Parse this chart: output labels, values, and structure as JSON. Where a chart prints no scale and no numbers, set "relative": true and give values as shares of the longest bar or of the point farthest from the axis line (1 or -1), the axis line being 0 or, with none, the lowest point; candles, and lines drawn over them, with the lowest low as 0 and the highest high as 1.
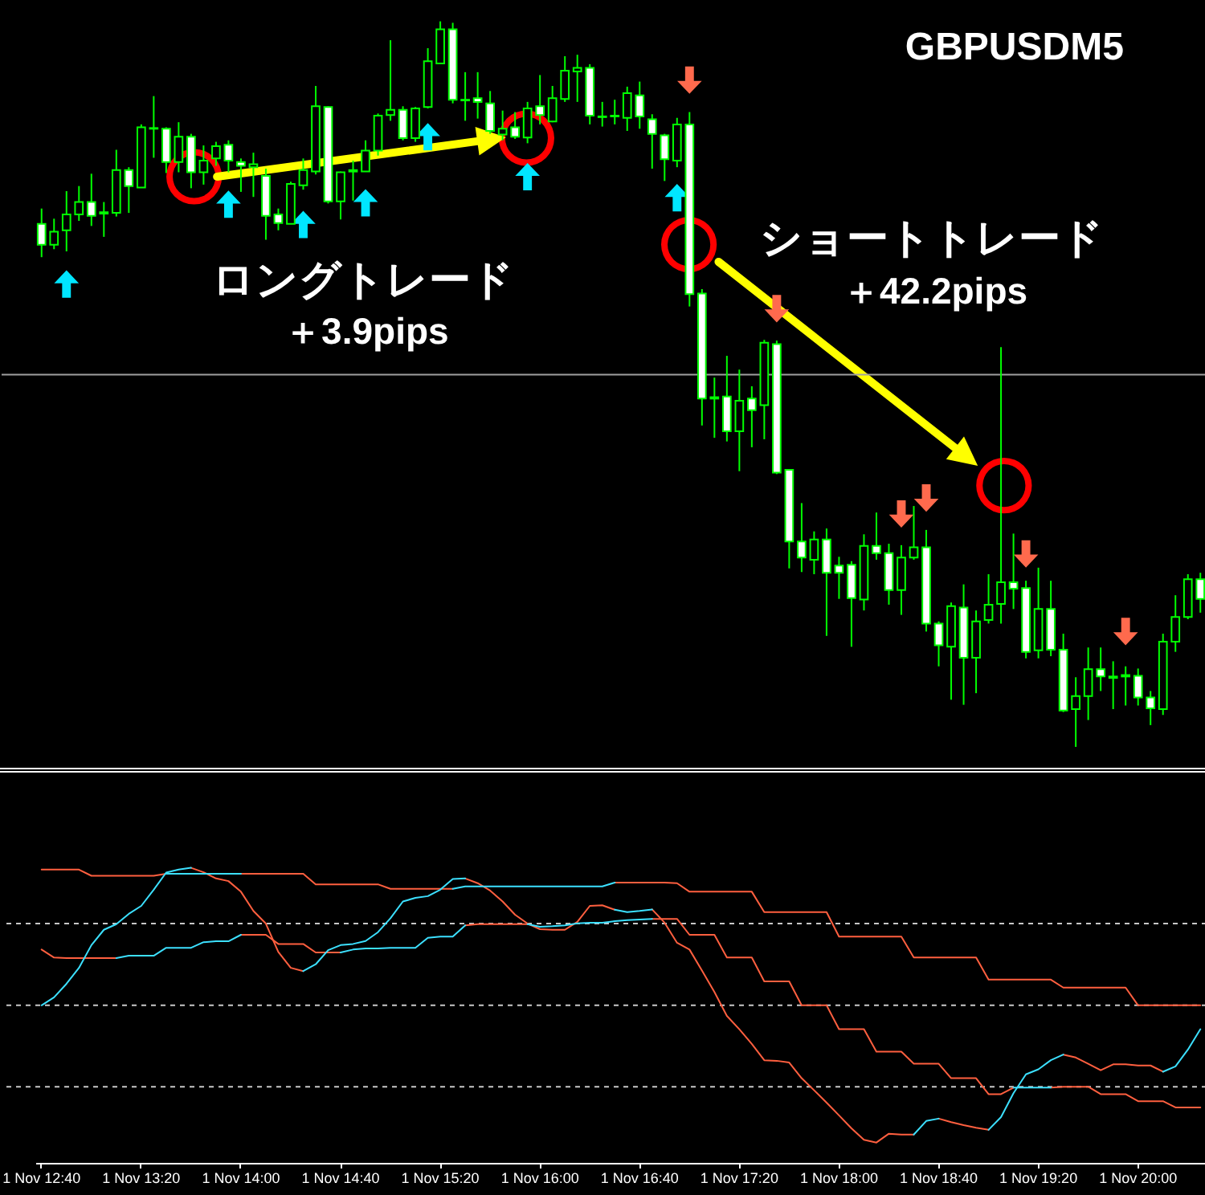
{
  "chart_data": [
    {
      "type": "candlestick",
      "relative": true,
      "title": "GBPUSDM5",
      "annotations": [
        "ロングトレード",
        "＋3.9pips",
        "ショートトレード",
        "＋42.2pips"
      ],
      "categories": [
        null,
        null,
        null,
        null,
        null,
        null,
        null,
        null,
        null,
        null,
        null,
        null,
        null,
        null,
        null,
        null,
        null,
        null,
        null,
        null,
        null,
        null,
        null,
        null,
        null,
        null,
        null,
        null,
        null,
        null,
        null,
        null,
        null,
        null,
        null,
        null,
        null,
        null,
        null,
        null,
        null,
        null,
        null,
        null,
        null,
        null,
        null,
        null,
        null,
        null,
        null,
        null,
        null,
        null,
        null,
        null,
        null,
        null,
        null,
        null,
        null,
        null,
        null,
        null,
        null,
        null,
        null,
        null,
        null,
        null,
        null,
        null,
        null,
        null,
        null,
        null,
        null,
        null,
        null,
        null,
        null,
        null,
        null,
        null,
        null,
        null,
        null,
        null,
        null,
        null,
        null,
        null,
        null,
        null
      ],
      "tick_labels": false,
      "color": "#00ff00",
      "colors": [
        "#ffffff",
        "#000000",
        "#000000",
        "#000000",
        "#ffffff",
        "#000000",
        "#000000",
        "#ffffff",
        "#000000",
        "#ffffff",
        "#ffffff",
        "#000000",
        "#ffffff",
        "#000000",
        "#000000",
        "#ffffff",
        "#ffffff",
        "#000000",
        "#ffffff",
        "#ffffff",
        "#000000",
        "#000000",
        "#000000",
        "#ffffff",
        "#000000",
        "#000000",
        "#000000",
        "#000000",
        "#000000",
        "#ffffff",
        "#000000",
        "#000000",
        "#000000",
        "#ffffff",
        "#ffffff",
        "#ffffff",
        "#ffffff",
        "#000000",
        "#ffffff",
        "#000000",
        "#ffffff",
        "#000000",
        "#000000",
        "#000000",
        "#ffffff",
        "#ffffff",
        "#000000",
        "#000000",
        "#ffffff",
        "#ffffff",
        "#ffffff",
        "#000000",
        "#ffffff",
        "#ffffff",
        "#ffffff",
        "#ffffff",
        "#000000",
        "#ffffff",
        "#000000",
        "#ffffff",
        "#ffffff",
        "#ffffff",
        "#000000",
        "#ffffff",
        "#ffffff",
        "#ffffff",
        "#000000",
        "#ffffff",
        "#ffffff",
        "#000000",
        "#000000",
        "#ffffff",
        "#ffffff",
        "#000000",
        "#ffffff",
        "#000000",
        "#000000",
        "#000000",
        "#ffffff",
        "#ffffff",
        "#000000",
        "#ffffff",
        "#ffffff",
        "#000000",
        "#000000",
        "#ffffff",
        "#ffffff",
        "#000000",
        "#ffffff",
        "#ffffff",
        "#000000",
        "#000000",
        "#000000",
        "#ffffff"
      ],
      "ohlc": [
        [
          0.721,
          0.742,
          0.675,
          0.692
        ],
        [
          0.692,
          0.728,
          0.686,
          0.71
        ],
        [
          0.712,
          0.766,
          0.683,
          0.734
        ],
        [
          0.734,
          0.773,
          0.725,
          0.751
        ],
        [
          0.751,
          0.79,
          0.718,
          0.732
        ],
        [
          0.735,
          0.751,
          0.703,
          0.737
        ],
        [
          0.736,
          0.823,
          0.731,
          0.795
        ],
        [
          0.795,
          0.799,
          0.736,
          0.773
        ],
        [
          0.771,
          0.858,
          0.771,
          0.854
        ],
        [
          0.853,
          0.897,
          0.812,
          0.852
        ],
        [
          0.852,
          0.854,
          0.791,
          0.806
        ],
        [
          0.806,
          0.861,
          0.792,
          0.841
        ],
        [
          0.841,
          0.845,
          0.77,
          0.792
        ],
        [
          0.792,
          0.829,
          0.775,
          0.808
        ],
        [
          0.811,
          0.834,
          0.801,
          0.828
        ],
        [
          0.83,
          0.836,
          0.792,
          0.808
        ],
        [
          0.806,
          0.811,
          0.765,
          0.801
        ],
        [
          0.799,
          0.819,
          0.758,
          0.803
        ],
        [
          0.787,
          0.797,
          0.699,
          0.732
        ],
        [
          0.734,
          0.742,
          0.712,
          0.722
        ],
        [
          0.721,
          0.779,
          0.721,
          0.776
        ],
        [
          0.774,
          0.811,
          0.768,
          0.795
        ],
        [
          0.793,
          0.911,
          0.789,
          0.883
        ],
        [
          0.882,
          0.883,
          0.749,
          0.752
        ],
        [
          0.752,
          0.793,
          0.727,
          0.792
        ],
        [
          0.793,
          0.808,
          0.753,
          0.795
        ],
        [
          0.793,
          0.836,
          0.793,
          0.822
        ],
        [
          0.822,
          0.873,
          0.815,
          0.87
        ],
        [
          0.871,
          0.974,
          0.863,
          0.878
        ],
        [
          0.878,
          0.883,
          0.836,
          0.839
        ],
        [
          0.839,
          0.882,
          0.834,
          0.88
        ],
        [
          0.882,
          0.963,
          0.88,
          0.945
        ],
        [
          0.942,
          1,
          0.942,
          0.989
        ],
        [
          0.989,
          0.998,
          0.887,
          0.892
        ],
        [
          0.892,
          0.93,
          0.863,
          0.891
        ],
        [
          0.894,
          0.93,
          0.866,
          0.889
        ],
        [
          0.887,
          0.904,
          0.845,
          0.849
        ],
        [
          0.844,
          0.877,
          0.836,
          0.852
        ],
        [
          0.854,
          0.875,
          0.838,
          0.841
        ],
        [
          0.84,
          0.889,
          0.832,
          0.88
        ],
        [
          0.883,
          0.926,
          0.858,
          0.871
        ],
        [
          0.862,
          0.911,
          0.861,
          0.894
        ],
        [
          0.893,
          0.952,
          0.889,
          0.932
        ],
        [
          0.931,
          0.954,
          0.889,
          0.936
        ],
        [
          0.936,
          0.941,
          0.858,
          0.87
        ],
        [
          0.869,
          0.889,
          0.855,
          0.868
        ],
        [
          0.869,
          0.892,
          0.858,
          0.87
        ],
        [
          0.867,
          0.91,
          0.849,
          0.901
        ],
        [
          0.898,
          0.917,
          0.852,
          0.869
        ],
        [
          0.865,
          0.872,
          0.797,
          0.845
        ],
        [
          0.843,
          0.845,
          0.78,
          0.81
        ],
        [
          0.808,
          0.867,
          0.799,
          0.858
        ],
        [
          0.858,
          0.875,
          0.607,
          0.624
        ],
        [
          0.625,
          0.631,
          0.443,
          0.48
        ],
        [
          0.482,
          0.509,
          0.426,
          0.48
        ],
        [
          0.483,
          0.539,
          0.421,
          0.435
        ],
        [
          0.435,
          0.52,
          0.38,
          0.477
        ],
        [
          0.48,
          0.497,
          0.413,
          0.464
        ],
        [
          0.471,
          0.561,
          0.424,
          0.557
        ],
        [
          0.555,
          0.56,
          0.376,
          0.378
        ],
        [
          0.382,
          0.383,
          0.246,
          0.283
        ],
        [
          0.283,
          0.336,
          0.241,
          0.261
        ],
        [
          0.258,
          0.297,
          0.238,
          0.286
        ],
        [
          0.286,
          0.301,
          0.153,
          0.24
        ],
        [
          0.25,
          0.262,
          0.204,
          0.24
        ],
        [
          0.251,
          0.256,
          0.138,
          0.205
        ],
        [
          0.203,
          0.293,
          0.188,
          0.277
        ],
        [
          0.277,
          0.323,
          0.258,
          0.267
        ],
        [
          0.267,
          0.28,
          0.196,
          0.216
        ],
        [
          0.216,
          0.278,
          0.182,
          0.261
        ],
        [
          0.261,
          0.332,
          0.258,
          0.275
        ],
        [
          0.275,
          0.299,
          0.159,
          0.17
        ],
        [
          0.17,
          0.173,
          0.111,
          0.14
        ],
        [
          0.138,
          0.199,
          0.065,
          0.194
        ],
        [
          0.192,
          0.224,
          0.058,
          0.123
        ],
        [
          0.123,
          0.188,
          0.074,
          0.173
        ],
        [
          0.175,
          0.238,
          0.17,
          0.196
        ],
        [
          0.197,
          0.551,
          0.17,
          0.227
        ],
        [
          0.227,
          0.294,
          0.19,
          0.218
        ],
        [
          0.219,
          0.229,
          0.122,
          0.131
        ],
        [
          0.133,
          0.247,
          0.122,
          0.19
        ],
        [
          0.19,
          0.229,
          0.125,
          0.134
        ],
        [
          0.134,
          0.156,
          0.048,
          0.05
        ],
        [
          0.052,
          0.096,
          0,
          0.07
        ],
        [
          0.07,
          0.137,
          0.037,
          0.107
        ],
        [
          0.107,
          0.137,
          0.077,
          0.097
        ],
        [
          0.097,
          0.118,
          0.052,
          0.095
        ],
        [
          0.097,
          0.111,
          0.057,
          0.099
        ],
        [
          0.098,
          0.108,
          0.057,
          0.068
        ],
        [
          0.068,
          0.077,
          0.03,
          0.053
        ],
        [
          0.052,
          0.156,
          0.044,
          0.145
        ],
        [
          0.145,
          0.209,
          0.131,
          0.179
        ],
        [
          0.179,
          0.238,
          0.176,
          0.231
        ],
        [
          0.231,
          0.24,
          0.185,
          0.204
        ]
      ],
      "series": [
        {
          "type": "scatter",
          "color": "#00e6ff",
          "marker": "triangle",
          "values": [
            null,
            null,
            0.638,
            null,
            null,
            null,
            null,
            null,
            null,
            null,
            null,
            null,
            null,
            null,
            null,
            0.748,
            null,
            null,
            null,
            null,
            null,
            0.72,
            null,
            null,
            null,
            null,
            0.75,
            null,
            null,
            null,
            null,
            0.841,
            null,
            null,
            null,
            null,
            null,
            null,
            null,
            0.786,
            null,
            null,
            null,
            null,
            null,
            null,
            null,
            null,
            null,
            null,
            null,
            0.757,
            null,
            null,
            null,
            null,
            null,
            null,
            null,
            null,
            null,
            null,
            null,
            null,
            null,
            null,
            null,
            null,
            null,
            null,
            null,
            null,
            null,
            null,
            null,
            null,
            null,
            null,
            null,
            null,
            null,
            null,
            null,
            null,
            null,
            null,
            null,
            null,
            null,
            null,
            null,
            null,
            null,
            null
          ]
        },
        {
          "type": "scatter",
          "color": "#ff6a4d",
          "marker": "triangle",
          "values": [
            null,
            null,
            null,
            null,
            null,
            null,
            null,
            null,
            null,
            null,
            null,
            null,
            null,
            null,
            null,
            null,
            null,
            null,
            null,
            null,
            null,
            null,
            null,
            null,
            null,
            null,
            null,
            null,
            null,
            null,
            null,
            null,
            null,
            null,
            null,
            null,
            null,
            null,
            null,
            null,
            null,
            null,
            null,
            null,
            null,
            null,
            null,
            null,
            null,
            null,
            null,
            null,
            0.919,
            null,
            null,
            null,
            null,
            null,
            null,
            0.604,
            null,
            null,
            null,
            null,
            null,
            null,
            null,
            null,
            null,
            0.321,
            null,
            0.343,
            null,
            null,
            null,
            null,
            null,
            null,
            null,
            0.266,
            null,
            null,
            null,
            null,
            null,
            null,
            null,
            0.159,
            null,
            null,
            null,
            null,
            null,
            null
          ]
        }
      ],
      "ref_lines": [
        {
          "axis": "y",
          "value": 0.513,
          "color": "#a0a0a0"
        }
      ]
    },
    {
      "type": "line",
      "relative": true,
      "categories": [
        "1 Nov 12:40",
        null,
        null,
        null,
        null,
        null,
        null,
        null,
        "1 Nov 13:20",
        null,
        null,
        null,
        null,
        null,
        null,
        null,
        "1 Nov 14:00",
        null,
        null,
        null,
        null,
        null,
        null,
        null,
        "1 Nov 14:40",
        null,
        null,
        null,
        null,
        null,
        null,
        null,
        "1 Nov 15:20",
        null,
        null,
        null,
        null,
        null,
        null,
        null,
        "1 Nov 16:00",
        null,
        null,
        null,
        null,
        null,
        null,
        null,
        "1 Nov 16:40",
        null,
        null,
        null,
        null,
        null,
        null,
        null,
        "1 Nov 17:20",
        null,
        null,
        null,
        null,
        null,
        null,
        null,
        "1 Nov 18:00",
        null,
        null,
        null,
        null,
        null,
        null,
        null,
        "1 Nov 18:40",
        null,
        null,
        null,
        null,
        null,
        null,
        null,
        "1 Nov 19:20",
        null,
        null,
        null,
        null,
        null,
        null,
        null,
        "1 Nov 20:00",
        null,
        null,
        null,
        null,
        null
      ],
      "tick_labels": "x",
      "series": [
        {
          "color": "#ff5f3f",
          "values": [
            0.994,
            0.994,
            0.994,
            0.994,
            0.973,
            0.973,
            0.973,
            0.973,
            0.973,
            0.973,
            0.98,
            null,
            null,
            null,
            null,
            null,
            0.98,
            0.98,
            0.98,
            0.98,
            0.98,
            0.98,
            0.944,
            0.944,
            0.944,
            0.944,
            0.944,
            0.944,
            0.929,
            0.929,
            0.929,
            0.929,
            0.929,
            0.929,
            null,
            null,
            null,
            null,
            null,
            null,
            null,
            null,
            null,
            null,
            null,
            null,
            0.95,
            0.95,
            0.95,
            0.95,
            0.95,
            0.948,
            0.919,
            0.919,
            0.919,
            0.919,
            0.919,
            0.919,
            0.85,
            0.85,
            0.85,
            0.85,
            0.85,
            0.85,
            0.767,
            0.767,
            0.767,
            0.767,
            0.767,
            0.767,
            0.696,
            0.696,
            0.696,
            0.696,
            0.696,
            0.696,
            0.621,
            0.621,
            0.621,
            0.621,
            0.621,
            0.621,
            0.594,
            0.594,
            0.594,
            0.594,
            0.594,
            0.594,
            0.534,
            0.534,
            0.534,
            0.534,
            0.534,
            0.534
          ]
        },
        {
          "color": "#ff5f3f",
          "values": [
            0.723,
            0.696,
            0.694,
            0.694,
            0.694,
            0.694,
            0.694,
            null,
            null,
            null,
            null,
            null,
            null,
            null,
            null,
            null,
            0.773,
            0.773,
            0.773,
            0.742,
            0.742,
            0.742,
            0.713,
            0.713,
            0.713,
            null,
            null,
            null,
            null,
            null,
            null,
            null,
            null,
            null,
            0.805,
            0.809,
            0.809,
            0.809,
            0.809,
            0.809,
            null,
            null,
            null,
            null,
            null,
            null,
            null,
            null,
            null,
            0.827,
            0.827,
            0.827,
            0.773,
            0.773,
            0.773,
            0.696,
            0.696,
            0.696,
            0.615,
            0.615,
            0.615,
            0.534,
            0.534,
            0.534,
            0.453,
            0.453,
            0.453,
            0.377,
            0.377,
            0.377,
            0.336,
            0.336,
            0.336,
            0.287,
            0.287,
            0.287,
            0.233,
            0.233,
            0.255,
            null,
            null,
            0.255,
            0.258,
            0.258,
            0.258,
            0.233,
            0.233,
            0.233,
            0.209,
            0.209,
            0.209,
            0.188,
            0.188,
            0.188
          ]
        },
        {
          "color": "#ff5f3f",
          "values": [
            null,
            null,
            null,
            null,
            null,
            null,
            null,
            null,
            null,
            null,
            null,
            null,
            1,
            0.985,
            0.964,
            0.955,
            0.919,
            0.854,
            0.811,
            0.715,
            0.661,
            0.65,
            null,
            null,
            null,
            null,
            null,
            null,
            null,
            null,
            null,
            null,
            null,
            null,
            0.964,
            0.948,
            0.923,
            0.886,
            0.841,
            0.811,
            0.792,
            0.79,
            0.79,
            0.817,
            0.871,
            0.873,
            0.858,
            null,
            null,
            0.859,
            0.814,
            0.746,
            0.723,
            0.652,
            0.579,
            0.498,
            0.453,
            0.403,
            0.348,
            0.346,
            0.34,
            0.287,
            0.246,
            0.204,
            0.161,
            0.117,
            0.078,
            0.069,
            0.099,
            0.096,
            0.096,
            null,
            0.15,
            0.138,
            0.128,
            0.119,
            0.112,
            null,
            null,
            null,
            null,
            null,
            0.367,
            0.357,
            0.336,
            0.314,
            0.334,
            0.334,
            0.33,
            0.33,
            0.309,
            null,
            null,
            null
          ]
        },
        {
          "color": "#3ce0ff",
          "values": [
            null,
            null,
            null,
            null,
            null,
            null,
            null,
            null,
            null,
            null,
            0.98,
            0.98,
            0.98,
            0.98,
            0.98,
            0.98,
            0.98,
            null,
            null,
            null,
            null,
            null,
            null,
            null,
            null,
            null,
            null,
            null,
            null,
            null,
            null,
            null,
            null,
            0.929,
            0.937,
            0.937,
            0.937,
            0.937,
            0.937,
            0.937,
            0.937,
            0.937,
            0.937,
            0.937,
            0.937,
            0.937,
            0.95,
            null,
            null,
            null,
            null,
            null,
            null,
            null,
            null,
            null,
            null,
            null,
            null,
            null,
            null,
            null,
            null,
            null,
            null,
            null,
            null,
            null,
            null,
            null,
            null,
            null,
            null,
            null,
            null,
            null,
            null,
            null,
            null,
            null,
            null,
            null,
            null,
            null,
            null,
            null,
            null,
            null,
            null,
            null,
            null,
            null,
            null,
            null
          ]
        },
        {
          "color": "#3ce0ff",
          "values": [
            null,
            null,
            null,
            null,
            null,
            null,
            0.694,
            0.702,
            0.702,
            0.702,
            0.729,
            0.729,
            0.729,
            0.748,
            0.751,
            0.751,
            0.773,
            null,
            null,
            null,
            null,
            null,
            null,
            null,
            0.713,
            0.723,
            0.727,
            0.727,
            0.729,
            0.729,
            0.729,
            0.763,
            0.767,
            0.767,
            0.805,
            null,
            null,
            null,
            null,
            0.809,
            0.8,
            0.802,
            0.805,
            0.812,
            0.814,
            0.814,
            0.819,
            0.823,
            0.825,
            0.827,
            null,
            null,
            null,
            null,
            null,
            null,
            null,
            null,
            null,
            null,
            null,
            null,
            null,
            null,
            null,
            null,
            null,
            null,
            null,
            null,
            null,
            null,
            null,
            null,
            null,
            null,
            null,
            null,
            0.255,
            0.255,
            0.255,
            0.255,
            null,
            null,
            null,
            null,
            null,
            null,
            null,
            null,
            null,
            null,
            null,
            null
          ]
        },
        {
          "color": "#3ce0ff",
          "values": [
            0.534,
            0.561,
            0.607,
            0.661,
            0.738,
            0.79,
            0.809,
            0.844,
            0.871,
            0.926,
            0.984,
            0.994,
            1,
            null,
            null,
            null,
            null,
            null,
            null,
            null,
            null,
            0.65,
            0.673,
            0.721,
            0.738,
            0.742,
            0.752,
            0.782,
            0.829,
            0.886,
            0.898,
            0.904,
            0.926,
            0.962,
            0.964,
            null,
            null,
            null,
            null,
            null,
            null,
            null,
            null,
            null,
            null,
            null,
            0.858,
            0.85,
            0.854,
            0.859,
            null,
            null,
            null,
            null,
            null,
            null,
            null,
            null,
            null,
            null,
            null,
            null,
            null,
            null,
            null,
            null,
            null,
            null,
            null,
            null,
            0.096,
            0.142,
            0.15,
            null,
            null,
            null,
            0.112,
            0.155,
            0.236,
            0.3,
            0.317,
            0.348,
            0.367,
            null,
            null,
            null,
            null,
            null,
            null,
            null,
            0.309,
            0.327,
            0.384,
            0.453
          ]
        }
      ],
      "ref_lines": [
        {
          "axis": "y",
          "value": 0.811,
          "color": "#c8c8c8",
          "line_style": "dashed"
        },
        {
          "axis": "y",
          "value": 0.534,
          "color": "#c8c8c8",
          "line_style": "dashed"
        },
        {
          "axis": "y",
          "value": 0.258,
          "color": "#c8c8c8",
          "line_style": "dashed"
        }
      ]
    }
  ]
}
